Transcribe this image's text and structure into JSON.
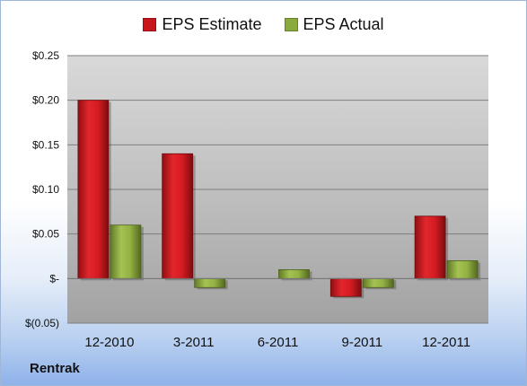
{
  "chart_data": {
    "type": "bar",
    "categories": [
      "12-2010",
      "3-2011",
      "6-2011",
      "9-2011",
      "12-2011"
    ],
    "series": [
      {
        "name": "EPS Estimate",
        "values": [
          0.2,
          0.14,
          0.0,
          -0.02,
          0.07
        ],
        "color": "#c8161d"
      },
      {
        "name": "EPS Actual",
        "values": [
          0.06,
          -0.01,
          0.01,
          -0.01,
          0.02
        ],
        "color": "#8aaa3e"
      }
    ],
    "ylim": [
      -0.05,
      0.25
    ],
    "y_ticks": [
      {
        "value": 0.25,
        "label": "$0.25"
      },
      {
        "value": 0.2,
        "label": "$0.20"
      },
      {
        "value": 0.15,
        "label": "$0.15"
      },
      {
        "value": 0.1,
        "label": "$0.10"
      },
      {
        "value": 0.05,
        "label": "$0.05"
      },
      {
        "value": 0.0,
        "label": "$-"
      },
      {
        "value": -0.05,
        "label": "$(0.05)"
      }
    ],
    "grid": true,
    "legend_position": "top-center"
  },
  "legend": {
    "estimate_label": "EPS Estimate",
    "actual_label": "EPS Actual"
  },
  "footer": {
    "company": "Rentrak"
  }
}
